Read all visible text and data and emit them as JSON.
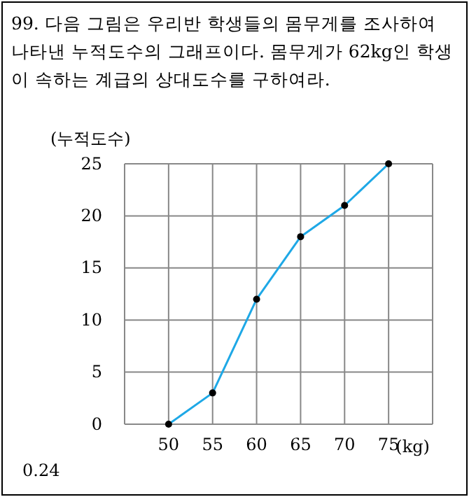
{
  "chart_data": {
    "type": "line",
    "title": "99. 다음 그림은 우리반 학생들의 몸무게를 조사하여 나타낸 누적도수의 그래프이다. 몸무게가 62kg인 학생이 속하는 계급의 상대도수를 구하여라.",
    "ylabel": "(누적도수)",
    "xlabel": "(kg)",
    "annotations": [
      "0.24"
    ],
    "x": [
      50,
      55,
      60,
      65,
      70,
      75
    ],
    "series": [
      {
        "color": "#1ea8e6",
        "values": [
          0,
          3,
          12,
          18,
          21,
          25
        ]
      }
    ],
    "xlim": [
      45,
      80
    ],
    "xticks": [
      50,
      55,
      60,
      65,
      70,
      75
    ],
    "ylim": [
      0,
      25
    ],
    "yticks": [
      0,
      5,
      10,
      15,
      20,
      25
    ],
    "grid": true,
    "marker": "circle"
  }
}
